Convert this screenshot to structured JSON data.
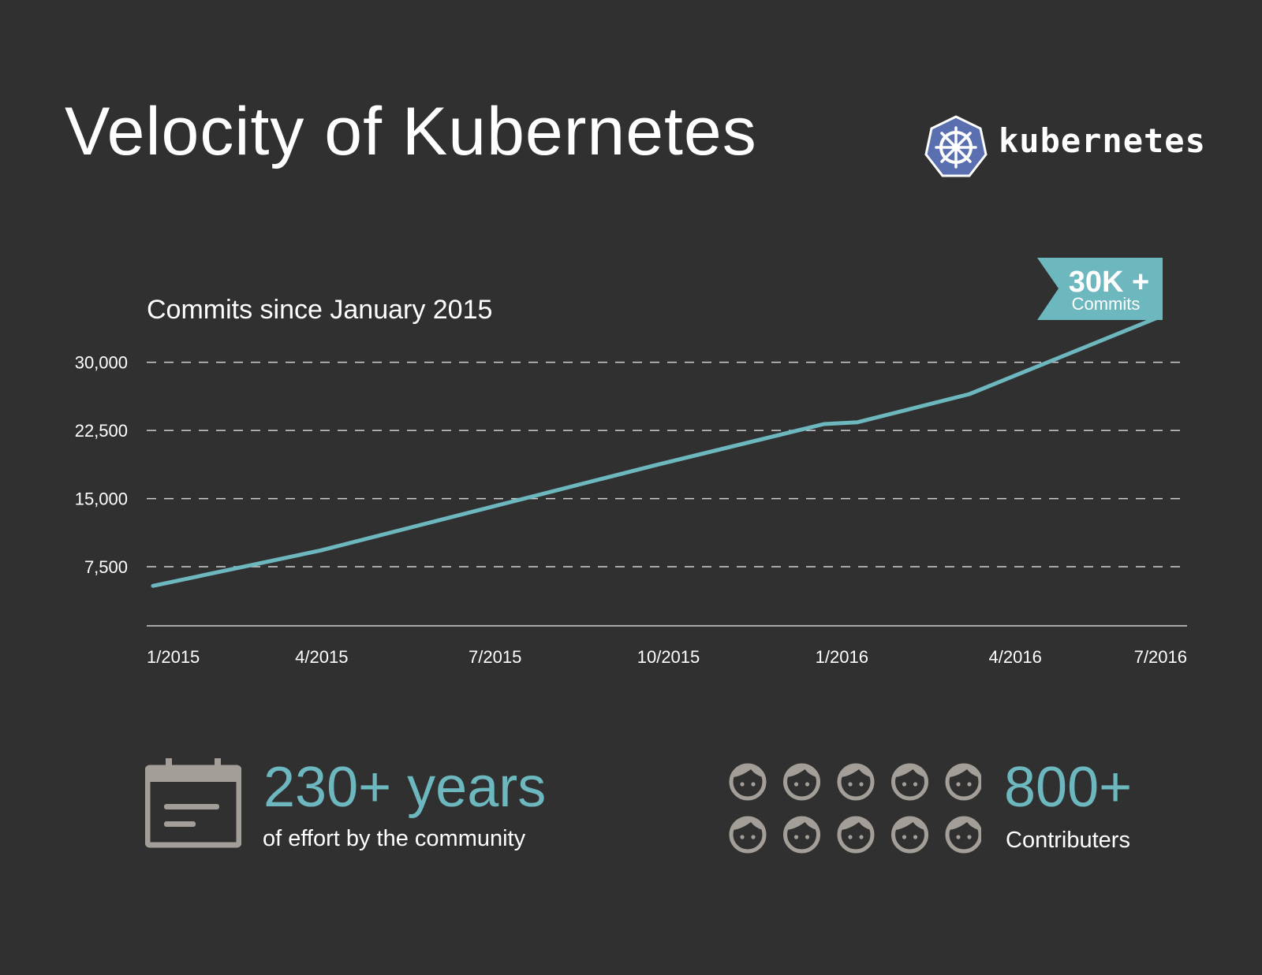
{
  "header": {
    "title": "Velocity of Kubernetes",
    "logo_text": "kubernetes",
    "logo_icon": "kubernetes-helm-wheel-icon"
  },
  "colors": {
    "background": "#303030",
    "accent": "#6db7bf",
    "logo_blue": "#5a6fb0",
    "muted_icon": "#a39f98",
    "grid": "#d0d0d0"
  },
  "chart_data": {
    "type": "line",
    "title": "Commits since January 2015",
    "x_tick_labels": [
      "1/2015",
      "4/2015",
      "7/2015",
      "10/2015",
      "1/2016",
      "4/2016",
      "7/2016"
    ],
    "y_tick_labels": [
      "30,000",
      "22,500",
      "15,000",
      "7,500"
    ],
    "y_ticks": [
      30000,
      22500,
      15000,
      7500
    ],
    "ylim": [
      1000,
      35000
    ],
    "x_index_range": [
      0,
      18
    ],
    "grid": "horizontal-dashed",
    "series": [
      {
        "x_months_since_jan_2015": [
          0,
          3,
          6,
          9,
          12,
          12.6,
          14.6,
          18
        ],
        "values": [
          5400,
          9300,
          14000,
          18700,
          23200,
          23400,
          26500,
          35000
        ]
      }
    ],
    "annotation": {
      "value": "30K +",
      "label": "Commits"
    }
  },
  "stats": {
    "years_value": "230+ years",
    "years_label": "of effort by the community",
    "contributors_value": "800+",
    "contributors_label": "Contributers",
    "calendar_icon": "calendar-icon",
    "face_icon": "person-face-icon",
    "face_count": 10
  }
}
